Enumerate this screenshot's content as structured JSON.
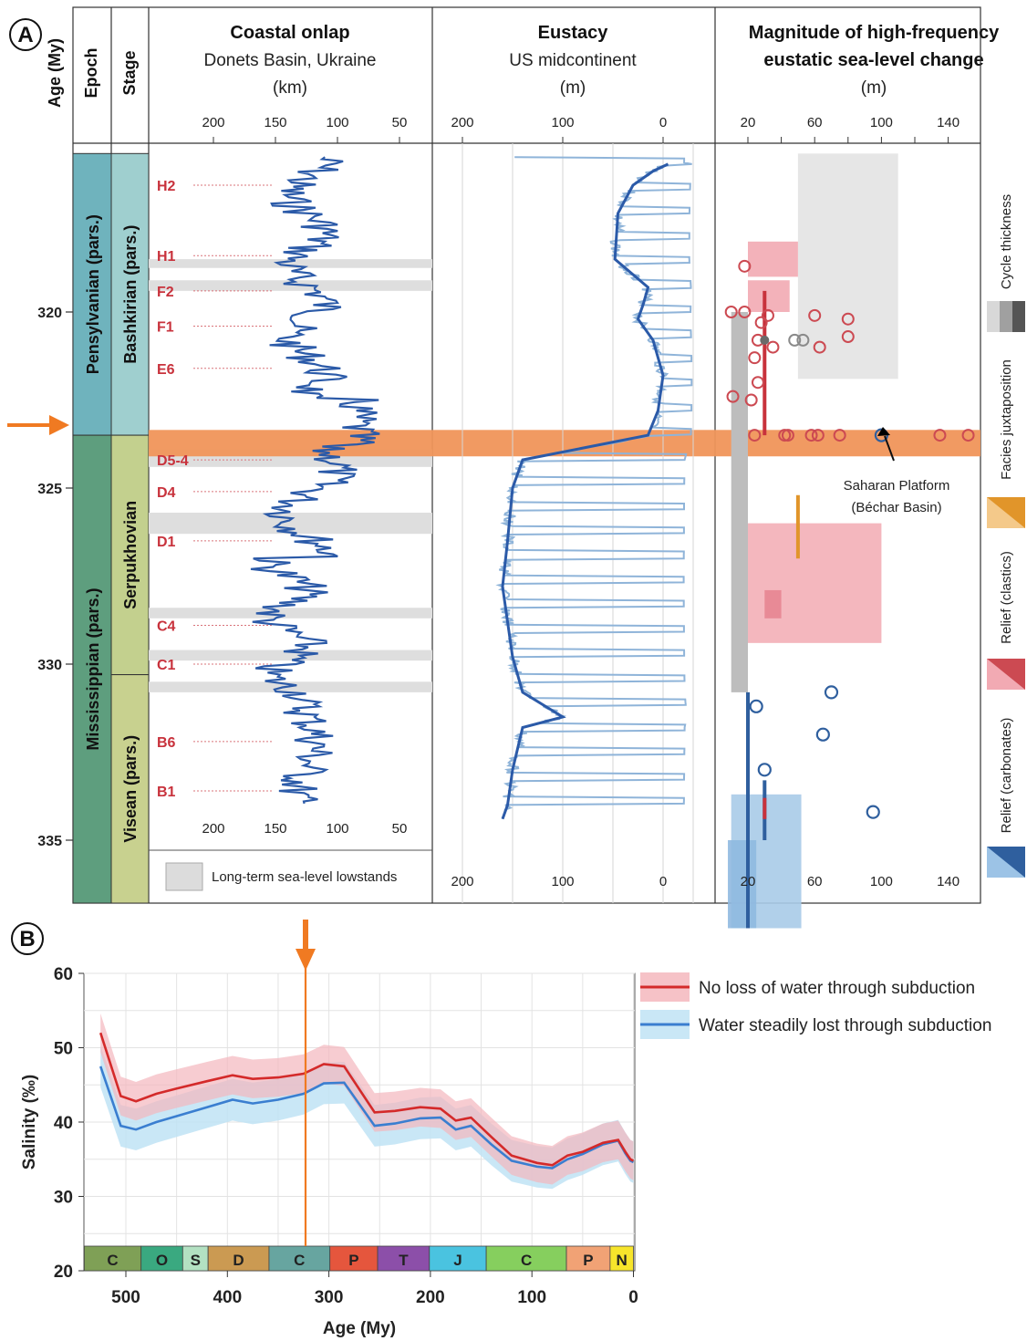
{
  "panelA": {
    "label": "A",
    "age_axis": {
      "label": "Age (My)",
      "ticks": [
        "320",
        "325",
        "330",
        "335"
      ],
      "range": [
        315.5,
        337.5
      ]
    },
    "epoch_header": "Epoch",
    "stage_header": "Stage",
    "epochs": [
      {
        "name": "Pensylvanian (pars.)",
        "from": 315.5,
        "to": 323.5,
        "color": "#6fb3bd"
      },
      {
        "name": "Mississippian (pars.)",
        "from": 323.5,
        "to": 337.5,
        "color": "#5e9e7e"
      }
    ],
    "stages": [
      {
        "name": "Bashkirian (pars.)",
        "from": 315.5,
        "to": 323.5,
        "color": "#9fcfcf"
      },
      {
        "name": "Serpukhovian",
        "from": 323.5,
        "to": 330.3,
        "color": "#c3d08e"
      },
      {
        "name": "Visean (pars.)",
        "from": 330.3,
        "to": 337.5,
        "color": "#c8d18f"
      }
    ],
    "boundary_marker_age": 323.5,
    "coastal_onlap": {
      "title": "Coastal onlap",
      "subtitle": "Donets Basin, Ukraine",
      "unit": "(km)",
      "x_ticks": [
        "200",
        "150",
        "100",
        "50"
      ],
      "sequences": [
        {
          "label": "H2",
          "age": 316.4
        },
        {
          "label": "H1",
          "age": 318.4
        },
        {
          "label": "F2",
          "age": 319.4
        },
        {
          "label": "F1",
          "age": 320.4
        },
        {
          "label": "E6",
          "age": 321.6
        },
        {
          "label": "D5-4",
          "age": 324.2
        },
        {
          "label": "D4",
          "age": 325.1
        },
        {
          "label": "D1",
          "age": 326.5
        },
        {
          "label": "C4",
          "age": 328.9
        },
        {
          "label": "C1",
          "age": 330.0
        },
        {
          "label": "B6",
          "age": 332.2
        },
        {
          "label": "B1",
          "age": 333.6
        }
      ],
      "lowstands": [
        [
          318.5,
          318.75
        ],
        [
          319.1,
          319.4
        ],
        [
          323.9,
          324.4
        ],
        [
          325.7,
          326.3
        ],
        [
          328.4,
          328.7
        ],
        [
          329.6,
          329.9
        ],
        [
          330.5,
          330.8
        ]
      ],
      "legend": "Long-term sea-level lowstands"
    },
    "eustacy": {
      "title": "Eustacy",
      "subtitle": "US midcontinent",
      "unit": "(m)",
      "x_ticks": [
        "200",
        "100",
        "0"
      ]
    },
    "magnitude": {
      "title_line1": "Magnitude of high-frequency",
      "title_line2": "eustatic sea-level change",
      "unit": "(m)",
      "x_ticks": [
        "20",
        "60",
        "100",
        "140"
      ],
      "annotation_line1": "Saharan Platform",
      "annotation_line2": "(Béchar Basin)",
      "side_legend": [
        "Cycle thickness",
        "Facies juxtaposition",
        "Relief (clastics)",
        "Relief (carbonates)"
      ],
      "colors": {
        "clastics": "#cc4a52",
        "carbonates": "#2f5f9e",
        "facies": "#e1952a",
        "thickness": "#8a8a8a"
      }
    }
  },
  "panelB": {
    "label": "B",
    "chart_data": {
      "type": "line",
      "xlabel": "Age (My)",
      "ylabel": "Salinity (‰)",
      "xlim": [
        540,
        0
      ],
      "ylim": [
        20,
        60
      ],
      "x_ticks": [
        "500",
        "400",
        "300",
        "200",
        "100",
        "0"
      ],
      "y_ticks": [
        "20",
        "30",
        "40",
        "50",
        "60"
      ],
      "marker_age": 323,
      "series": [
        {
          "name": "No loss of water through subduction",
          "color": "#d42a2a",
          "x": [
            525,
            505,
            490,
            470,
            450,
            420,
            395,
            375,
            350,
            325,
            305,
            285,
            255,
            235,
            210,
            190,
            175,
            160,
            140,
            120,
            95,
            80,
            65,
            50,
            30,
            15,
            8,
            3,
            0
          ],
          "y": [
            52,
            43.5,
            42.8,
            43.8,
            44.5,
            45.5,
            46.3,
            45.8,
            46.0,
            46.5,
            47.8,
            47.5,
            41.3,
            41.5,
            42.0,
            41.8,
            40.2,
            40.6,
            38.0,
            35.5,
            34.5,
            34.2,
            35.5,
            36.0,
            37.2,
            37.6,
            36.0,
            35.0,
            34.8
          ],
          "band_halfwidth": 2.6
        },
        {
          "name": "Water steadily lost through subduction",
          "color": "#3a7ed0",
          "x": [
            525,
            505,
            490,
            470,
            450,
            420,
            395,
            375,
            350,
            325,
            305,
            285,
            255,
            235,
            210,
            190,
            175,
            160,
            140,
            120,
            95,
            80,
            65,
            50,
            30,
            15,
            8,
            3,
            0
          ],
          "y": [
            47.5,
            39.5,
            39.0,
            40.0,
            40.8,
            42.0,
            43.0,
            42.5,
            43.0,
            43.8,
            45.2,
            45.3,
            39.5,
            39.8,
            40.5,
            40.6,
            39.0,
            39.5,
            37.0,
            34.8,
            34.0,
            33.8,
            35.0,
            35.7,
            37.0,
            37.5,
            35.8,
            34.8,
            34.6
          ],
          "band_halfwidth": 2.8
        }
      ],
      "periods": [
        {
          "label": "C",
          "from": 541,
          "to": 485,
          "color": "#7fa056"
        },
        {
          "label": "O",
          "from": 485,
          "to": 444,
          "color": "#3aa980"
        },
        {
          "label": "S",
          "from": 444,
          "to": 419,
          "color": "#b3e1c2"
        },
        {
          "label": "D",
          "from": 419,
          "to": 359,
          "color": "#cb9a52"
        },
        {
          "label": "C",
          "from": 359,
          "to": 299,
          "color": "#67a5a0"
        },
        {
          "label": "P",
          "from": 299,
          "to": 252,
          "color": "#e5563d"
        },
        {
          "label": "T",
          "from": 252,
          "to": 201,
          "color": "#8c4fa9"
        },
        {
          "label": "J",
          "from": 201,
          "to": 145,
          "color": "#4ac3e0"
        },
        {
          "label": "C",
          "from": 145,
          "to": 66,
          "color": "#86cf5e"
        },
        {
          "label": "P",
          "from": 66,
          "to": 23,
          "color": "#f1a275"
        },
        {
          "label": "N",
          "from": 23,
          "to": 0,
          "color": "#f7e52b"
        }
      ]
    }
  }
}
